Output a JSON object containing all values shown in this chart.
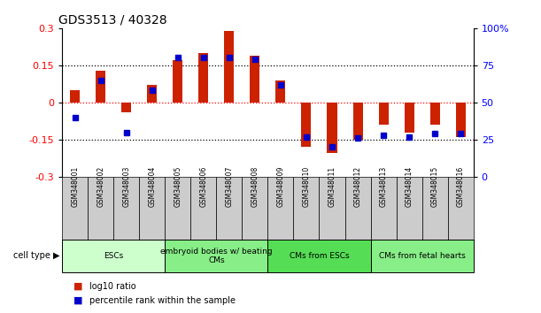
{
  "title": "GDS3513 / 40328",
  "samples": [
    "GSM348001",
    "GSM348002",
    "GSM348003",
    "GSM348004",
    "GSM348005",
    "GSM348006",
    "GSM348007",
    "GSM348008",
    "GSM348009",
    "GSM348010",
    "GSM348011",
    "GSM348012",
    "GSM348013",
    "GSM348014",
    "GSM348015",
    "GSM348016"
  ],
  "log10_ratio": [
    0.05,
    0.13,
    -0.04,
    0.07,
    0.17,
    0.2,
    0.29,
    0.19,
    0.09,
    -0.18,
    -0.205,
    -0.15,
    -0.09,
    -0.12,
    -0.09,
    -0.14
  ],
  "percentile_rank": [
    40,
    65,
    30,
    58,
    80,
    80,
    80,
    79,
    62,
    27,
    20,
    26,
    28,
    27,
    29,
    29
  ],
  "bar_color": "#cc2200",
  "pct_color": "#0000cc",
  "ylim_left": [
    -0.3,
    0.3
  ],
  "ylim_right": [
    0,
    100
  ],
  "yticks_left": [
    -0.3,
    -0.15,
    0,
    0.15,
    0.3
  ],
  "yticks_right": [
    0,
    25,
    50,
    75,
    100
  ],
  "yticklabels_right": [
    "0",
    "25",
    "50",
    "75",
    "100%"
  ],
  "cell_type_groups": [
    {
      "label": "ESCs",
      "start": 0,
      "end": 3,
      "color": "#ccffcc"
    },
    {
      "label": "embryoid bodies w/ beating\nCMs",
      "start": 4,
      "end": 7,
      "color": "#88ee88"
    },
    {
      "label": "CMs from ESCs",
      "start": 8,
      "end": 11,
      "color": "#55dd55"
    },
    {
      "label": "CMs from fetal hearts",
      "start": 12,
      "end": 15,
      "color": "#88ee88"
    }
  ],
  "cell_type_label": "cell type",
  "legend_red": "log10 ratio",
  "legend_blue": "percentile rank within the sample",
  "sample_box_color": "#cccccc"
}
